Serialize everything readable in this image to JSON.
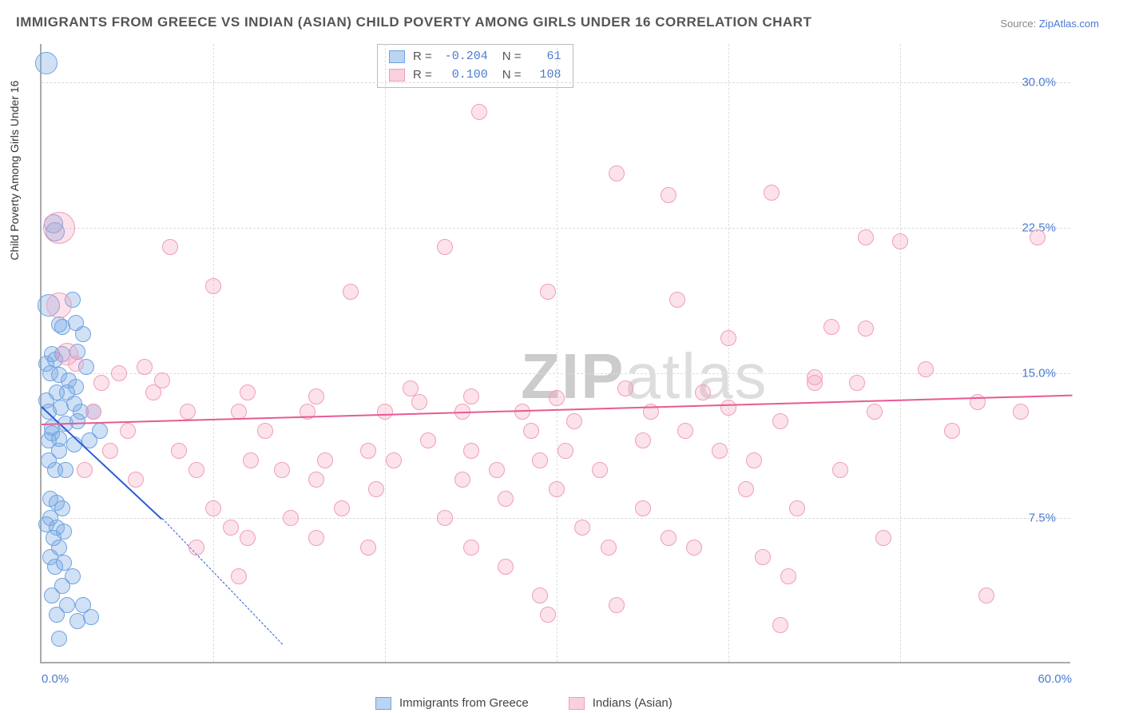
{
  "title": "IMMIGRANTS FROM GREECE VS INDIAN (ASIAN) CHILD POVERTY AMONG GIRLS UNDER 16 CORRELATION CHART",
  "source_label": "Source:",
  "source_name": "ZipAtlas.com",
  "ylabel": "Child Poverty Among Girls Under 16",
  "watermark_bold": "ZIP",
  "watermark_rest": "atlas",
  "chart": {
    "type": "scatter",
    "background_color": "#ffffff",
    "grid_color": "#dddddd",
    "axis_color": "#aaaaaa",
    "tick_label_color": "#4a7bd0",
    "xlim": [
      0,
      60
    ],
    "ylim": [
      0,
      32
    ],
    "xticks": [
      {
        "v": 0,
        "label": "0.0%",
        "pos": "first"
      },
      {
        "v": 10,
        "label": ""
      },
      {
        "v": 20,
        "label": ""
      },
      {
        "v": 30,
        "label": ""
      },
      {
        "v": 40,
        "label": ""
      },
      {
        "v": 50,
        "label": ""
      },
      {
        "v": 60,
        "label": "60.0%",
        "pos": "last"
      }
    ],
    "yticks": [
      {
        "v": 7.5,
        "label": "7.5%"
      },
      {
        "v": 15.0,
        "label": "15.0%"
      },
      {
        "v": 22.5,
        "label": "22.5%"
      },
      {
        "v": 30.0,
        "label": "30.0%"
      }
    ],
    "series": [
      {
        "id": "greece",
        "label": "Immigrants from Greece",
        "fill": "rgba(120,170,230,0.35)",
        "stroke": "#6fa3e0",
        "swatch_fill": "rgba(120,170,230,0.5)",
        "swatch_stroke": "#6fa3e0",
        "R": "-0.204",
        "N": "61",
        "marker_r": 10,
        "trend": {
          "x1": 0,
          "y1": 13.3,
          "x2": 7.0,
          "y2": 7.5,
          "extend_x2": 14.0,
          "extend_y2": 1.0,
          "color": "#2a5bd7"
        },
        "points": [
          [
            0.3,
            31.0,
            14
          ],
          [
            0.7,
            22.7,
            12
          ],
          [
            0.8,
            22.3,
            12
          ],
          [
            1.8,
            18.8,
            10
          ],
          [
            0.4,
            18.5,
            14
          ],
          [
            2.0,
            17.6,
            10
          ],
          [
            1.0,
            17.5,
            10
          ],
          [
            1.2,
            17.4,
            10
          ],
          [
            2.4,
            17.0,
            10
          ],
          [
            1.2,
            16.0,
            10
          ],
          [
            0.6,
            16.0,
            10
          ],
          [
            2.1,
            16.1,
            10
          ],
          [
            0.8,
            15.7,
            10
          ],
          [
            0.3,
            15.5,
            10
          ],
          [
            2.6,
            15.3,
            10
          ],
          [
            0.5,
            15.0,
            10
          ],
          [
            1.0,
            14.9,
            10
          ],
          [
            1.6,
            14.6,
            10
          ],
          [
            2.0,
            14.3,
            10
          ],
          [
            0.9,
            14.0,
            10
          ],
          [
            1.5,
            14.0,
            10
          ],
          [
            0.3,
            13.6,
            10
          ],
          [
            1.9,
            13.4,
            10
          ],
          [
            1.1,
            13.2,
            10
          ],
          [
            2.3,
            13.0,
            10
          ],
          [
            0.4,
            13.0,
            10
          ],
          [
            1.4,
            12.4,
            10
          ],
          [
            2.1,
            12.5,
            10
          ],
          [
            0.6,
            12.2,
            10
          ],
          [
            0.6,
            11.9,
            10
          ],
          [
            1.0,
            11.6,
            10
          ],
          [
            0.4,
            11.5,
            10
          ],
          [
            1.9,
            11.3,
            10
          ],
          [
            1.0,
            11.0,
            10
          ],
          [
            0.4,
            10.5,
            10
          ],
          [
            0.8,
            10.0,
            10
          ],
          [
            1.4,
            10.0,
            10
          ],
          [
            3.0,
            13.0,
            10
          ],
          [
            3.4,
            12.0,
            10
          ],
          [
            2.8,
            11.5,
            10
          ],
          [
            0.5,
            8.5,
            10
          ],
          [
            0.9,
            8.3,
            10
          ],
          [
            1.2,
            8.0,
            10
          ],
          [
            0.5,
            7.5,
            10
          ],
          [
            0.3,
            7.2,
            10
          ],
          [
            0.9,
            7.0,
            10
          ],
          [
            1.3,
            6.8,
            10
          ],
          [
            0.7,
            6.5,
            10
          ],
          [
            1.0,
            6.0,
            10
          ],
          [
            0.5,
            5.5,
            10
          ],
          [
            1.3,
            5.2,
            10
          ],
          [
            0.8,
            5.0,
            10
          ],
          [
            1.8,
            4.5,
            10
          ],
          [
            1.2,
            4.0,
            10
          ],
          [
            0.6,
            3.5,
            10
          ],
          [
            1.5,
            3.0,
            10
          ],
          [
            2.4,
            3.0,
            10
          ],
          [
            0.9,
            2.5,
            10
          ],
          [
            2.1,
            2.2,
            10
          ],
          [
            2.9,
            2.4,
            10
          ],
          [
            1.0,
            1.3,
            10
          ]
        ]
      },
      {
        "id": "indian",
        "label": "Indians (Asian)",
        "fill": "rgba(245,160,190,0.30)",
        "stroke": "#f09eb8",
        "swatch_fill": "rgba(245,160,190,0.5)",
        "swatch_stroke": "#f09eb8",
        "R": "0.100",
        "N": "108",
        "marker_r": 11,
        "trend": {
          "x1": 0,
          "y1": 12.4,
          "x2": 60,
          "y2": 13.9,
          "color": "#e75a94"
        },
        "points": [
          [
            25.5,
            28.5,
            10
          ],
          [
            33.5,
            25.3,
            10
          ],
          [
            42.5,
            24.3,
            10
          ],
          [
            36.5,
            24.2,
            10
          ],
          [
            1.0,
            22.5,
            20
          ],
          [
            48.0,
            22.0,
            10
          ],
          [
            58.0,
            22.0,
            10
          ],
          [
            50.0,
            21.8,
            10
          ],
          [
            7.5,
            21.5,
            10
          ],
          [
            23.5,
            21.5,
            10
          ],
          [
            10.0,
            19.5,
            10
          ],
          [
            18.0,
            19.2,
            10
          ],
          [
            29.5,
            19.2,
            10
          ],
          [
            37.0,
            18.8,
            10
          ],
          [
            1.0,
            18.5,
            16
          ],
          [
            48.0,
            17.3,
            10
          ],
          [
            46.0,
            17.4,
            10
          ],
          [
            40.0,
            16.8,
            10
          ],
          [
            1.5,
            16.0,
            14
          ],
          [
            2.0,
            15.5,
            10
          ],
          [
            4.5,
            15.0,
            10
          ],
          [
            6.5,
            14.0,
            10
          ],
          [
            7.0,
            14.6,
            10
          ],
          [
            6.0,
            15.3,
            10
          ],
          [
            11.5,
            13.0,
            10
          ],
          [
            12.0,
            14.0,
            10
          ],
          [
            12.2,
            10.5,
            10
          ],
          [
            14.0,
            10.0,
            10
          ],
          [
            15.5,
            13.0,
            10
          ],
          [
            16.0,
            9.5,
            10
          ],
          [
            16.0,
            13.8,
            10
          ],
          [
            16.5,
            10.5,
            10
          ],
          [
            21.5,
            14.2,
            10
          ],
          [
            22.0,
            13.5,
            10
          ],
          [
            19.0,
            11.0,
            10
          ],
          [
            20.5,
            10.5,
            10
          ],
          [
            19.5,
            9.0,
            10
          ],
          [
            17.5,
            8.0,
            10
          ],
          [
            14.5,
            7.5,
            10
          ],
          [
            12.0,
            6.5,
            10
          ],
          [
            11.0,
            7.0,
            10
          ],
          [
            16.0,
            6.5,
            10
          ],
          [
            19.0,
            6.0,
            10
          ],
          [
            24.5,
            13.0,
            10
          ],
          [
            25.0,
            13.8,
            10
          ],
          [
            28.0,
            13.0,
            10
          ],
          [
            28.5,
            12.0,
            10
          ],
          [
            25.0,
            11.0,
            10
          ],
          [
            24.5,
            9.5,
            10
          ],
          [
            26.5,
            10.0,
            10
          ],
          [
            27.0,
            8.5,
            10
          ],
          [
            23.5,
            7.5,
            10
          ],
          [
            25.0,
            6.0,
            10
          ],
          [
            27.0,
            5.0,
            10
          ],
          [
            29.0,
            3.5,
            10
          ],
          [
            29.5,
            2.5,
            10
          ],
          [
            30.0,
            13.7,
            10
          ],
          [
            31.0,
            12.5,
            10
          ],
          [
            30.5,
            11.0,
            10
          ],
          [
            32.5,
            10.0,
            10
          ],
          [
            30.0,
            9.0,
            10
          ],
          [
            31.5,
            7.0,
            10
          ],
          [
            33.0,
            6.0,
            10
          ],
          [
            33.5,
            3.0,
            10
          ],
          [
            35.5,
            13.0,
            10
          ],
          [
            35.0,
            11.5,
            10
          ],
          [
            37.5,
            12.0,
            10
          ],
          [
            35.0,
            8.0,
            10
          ],
          [
            36.5,
            6.5,
            10
          ],
          [
            38.5,
            14.0,
            10
          ],
          [
            40.0,
            13.2,
            10
          ],
          [
            39.5,
            11.0,
            10
          ],
          [
            41.5,
            10.5,
            10
          ],
          [
            43.0,
            12.5,
            10
          ],
          [
            41.0,
            9.0,
            10
          ],
          [
            42.0,
            5.5,
            10
          ],
          [
            43.5,
            4.5,
            10
          ],
          [
            43.0,
            2.0,
            10
          ],
          [
            45.0,
            14.5,
            10
          ],
          [
            45.0,
            14.8,
            10
          ],
          [
            44.0,
            8.0,
            10
          ],
          [
            46.5,
            10.0,
            10
          ],
          [
            48.5,
            13.0,
            10
          ],
          [
            47.5,
            14.5,
            10
          ],
          [
            49.0,
            6.5,
            10
          ],
          [
            51.5,
            15.2,
            10
          ],
          [
            53.0,
            12.0,
            10
          ],
          [
            54.5,
            13.5,
            10
          ],
          [
            57.0,
            13.0,
            10
          ],
          [
            55.0,
            3.5,
            10
          ],
          [
            3.5,
            14.5,
            10
          ],
          [
            3.0,
            13.0,
            10
          ],
          [
            5.0,
            12.0,
            10
          ],
          [
            4.0,
            11.0,
            10
          ],
          [
            5.5,
            9.5,
            10
          ],
          [
            8.0,
            11.0,
            10
          ],
          [
            8.5,
            13.0,
            10
          ],
          [
            9.0,
            10.0,
            10
          ],
          [
            10.0,
            8.0,
            10
          ],
          [
            9.0,
            6.0,
            10
          ],
          [
            11.5,
            4.5,
            10
          ],
          [
            13.0,
            12.0,
            10
          ],
          [
            20.0,
            13.0,
            10
          ],
          [
            22.5,
            11.5,
            10
          ],
          [
            34.0,
            14.2,
            10
          ],
          [
            38.0,
            6.0,
            10
          ],
          [
            29.0,
            10.5,
            10
          ],
          [
            2.5,
            10.0,
            10
          ]
        ]
      }
    ]
  },
  "stats_labels": {
    "R": "R =",
    "N": "N ="
  }
}
